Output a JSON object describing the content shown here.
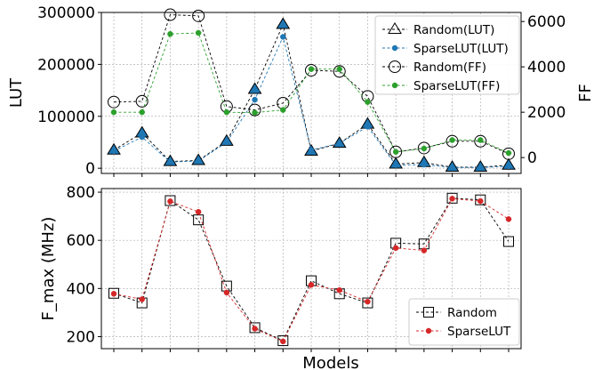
{
  "chart_data": [
    {
      "type": "line",
      "xlabel": "",
      "ylabel": "LUT",
      "ylabel_right": "FF",
      "ylim": [
        -10000,
        300000
      ],
      "ylim_right": [
        -700,
        6400
      ],
      "yticks": [
        "0",
        "100000",
        "200000",
        "300000"
      ],
      "yticks_right": [
        "0",
        "2000",
        "4000",
        "6000"
      ],
      "x": [
        1,
        2,
        3,
        4,
        5,
        6,
        7,
        8,
        9,
        10,
        11,
        12,
        13,
        14,
        15
      ],
      "grid": true,
      "legend_position": "top-right",
      "series": [
        {
          "name": "Random(LUT)",
          "axis": "left",
          "marker": "triangle",
          "color": "#000000",
          "values": [
            35000,
            68000,
            13000,
            15000,
            52000,
            152000,
            277000,
            33000,
            48000,
            85000,
            8000,
            11000,
            2000,
            2000,
            6000
          ]
        },
        {
          "name": "SparseLUT(LUT)",
          "axis": "left",
          "marker": "dot",
          "color": "#1f77b4",
          "values": [
            33000,
            60000,
            12000,
            14000,
            50000,
            132000,
            253000,
            35000,
            48000,
            80000,
            6000,
            7000,
            1500,
            1500,
            4000
          ]
        },
        {
          "name": "Random(FF)",
          "axis": "right",
          "marker": "circle",
          "color": "#000000",
          "values": [
            2450,
            2480,
            6300,
            6250,
            2250,
            2100,
            2400,
            3850,
            3800,
            2700,
            250,
            420,
            720,
            720,
            170
          ]
        },
        {
          "name": "SparseLUT(FF)",
          "axis": "right",
          "marker": "dot",
          "color": "#2ca02c",
          "values": [
            2000,
            2000,
            5450,
            5500,
            2000,
            1980,
            2100,
            3900,
            3900,
            2450,
            250,
            400,
            770,
            770,
            200
          ]
        }
      ]
    },
    {
      "type": "line",
      "xlabel": "Models",
      "ylabel": "F_max (MHz)",
      "ylim": [
        150,
        815
      ],
      "yticks": [
        "200",
        "400",
        "600",
        "800"
      ],
      "x": [
        1,
        2,
        3,
        4,
        5,
        6,
        7,
        8,
        9,
        10,
        11,
        12,
        13,
        14,
        15
      ],
      "grid": true,
      "legend_position": "bottom-right",
      "series": [
        {
          "name": "Random",
          "marker": "square",
          "color": "#000000",
          "values": [
            380,
            340,
            765,
            685,
            410,
            237,
            183,
            432,
            378,
            340,
            588,
            585,
            775,
            768,
            595
          ]
        },
        {
          "name": "SparseLUT",
          "marker": "dot",
          "color": "#d62728",
          "values": [
            378,
            355,
            762,
            718,
            383,
            233,
            180,
            415,
            393,
            345,
            568,
            558,
            773,
            763,
            688
          ]
        }
      ]
    }
  ],
  "colors": {
    "random": "#000000",
    "sparselut_lut": "#1f77b4",
    "sparselut_ff": "#2ca02c",
    "sparselut_fmax": "#d62728",
    "lut_marker_fill": "#1f77b4",
    "grid": "#b0b0b0"
  }
}
